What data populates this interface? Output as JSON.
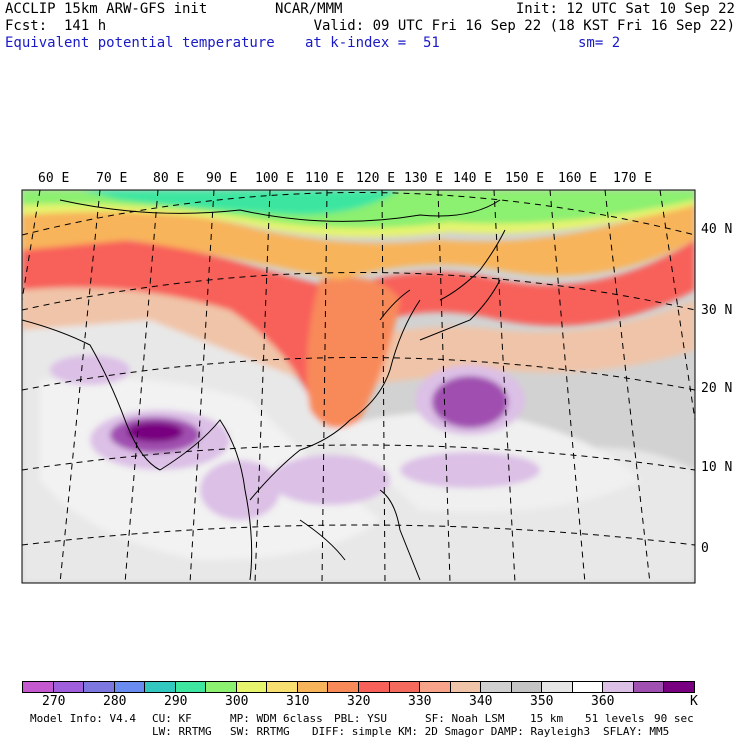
{
  "header": {
    "left_line1": "ACCLIP 15km ARW-GFS init",
    "left_line2": "Fcst:  141 h",
    "variable": "Equivalent potential temperature",
    "center_line1": "NCAR/MMM",
    "init": "Init: 12 UTC Sat 10 Sep 22",
    "valid": "Valid: 09 UTC Fri 16 Sep 22 (18 KST Fri 16 Sep 22)",
    "k_index": "at k-index =  51",
    "sm": "sm= 2"
  },
  "map": {
    "lon_labels": [
      "60 E",
      "70 E",
      "80 E",
      "90 E",
      "100 E",
      "110 E",
      "120 E",
      "130 E",
      "140 E",
      "150 E",
      "160 E",
      "170 E"
    ],
    "lat_labels": [
      "40 N",
      "30 N",
      "20 N",
      "10 N",
      "0"
    ]
  },
  "colorbar": {
    "colors": [
      "#c55ad0",
      "#a05fdc",
      "#7d78e0",
      "#6a8cf0",
      "#32c8c0",
      "#3ee6a0",
      "#8cf070",
      "#e6f46e",
      "#f8e070",
      "#f8b45a",
      "#f88a5a",
      "#f8605a",
      "#f46a5c",
      "#f8a48a",
      "#f0c4a8",
      "#d0d0d0",
      "#c4c4c4",
      "#e6e6e6",
      "#ffffff",
      "#dcc0e6",
      "#a050b0",
      "#780080"
    ],
    "tick_labels": [
      "270",
      "280",
      "290",
      "300",
      "310",
      "320",
      "330",
      "340",
      "350",
      "360"
    ],
    "unit": "K"
  },
  "footer": {
    "model_info": "Model Info: V4.4",
    "cu": "CU: KF",
    "mp": "MP: WDM 6class",
    "pbl": "PBL: YSU",
    "sf": "SF: Noah LSM",
    "res": "15 km",
    "levels": "51 levels",
    "dt": "90 sec",
    "lw": "LW: RRTMG",
    "sw": "SW: RRTMG",
    "diff": "DIFF: simple KM: 2D Smagor DAMP: Rayleigh3",
    "sflay": "SFLAY: MM5"
  }
}
